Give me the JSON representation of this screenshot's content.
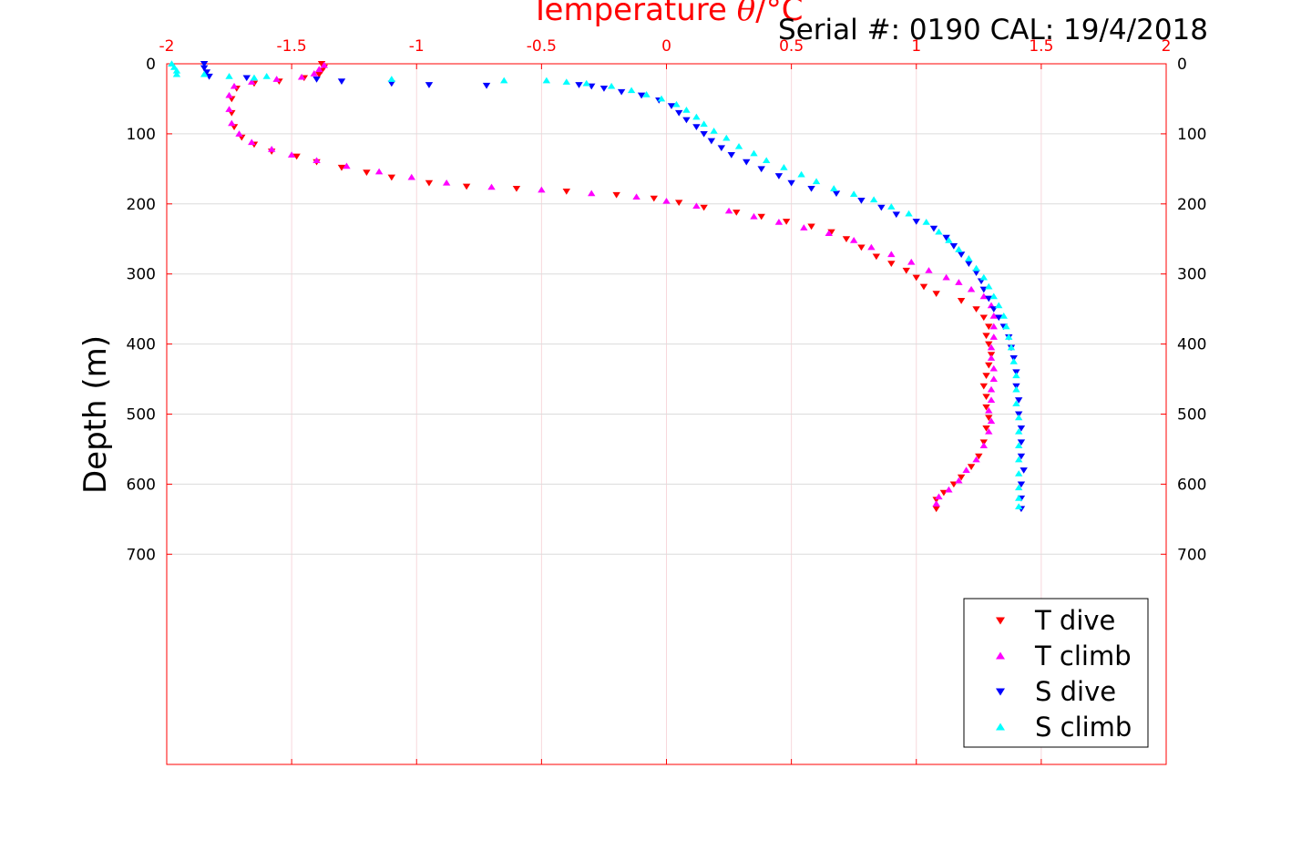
{
  "chart_data": {
    "type": "scatter",
    "xlabel_prefix": "Temperature ",
    "xlabel_symbol": "θ",
    "xlabel_suffix": "/°C",
    "ylabel": "Depth (m)",
    "annotation": "Serial #: 0190  CAL: 19/4/2018",
    "xlim": [
      -2,
      2
    ],
    "ylim": [
      0,
      1000
    ],
    "x_axis_position": "top",
    "y_axis_reversed": true,
    "x_ticks": [
      "-2",
      "-1.5",
      "-1",
      "-0.5",
      "0",
      "0.5",
      "1",
      "1.5",
      "2"
    ],
    "y_ticks": [
      "0",
      "100",
      "200",
      "300",
      "400",
      "500",
      "600",
      "700"
    ],
    "grid": true,
    "legend_position": "bottom-right",
    "colors": {
      "x_axis": "#ff0000",
      "box": "#ff0000"
    },
    "series": [
      {
        "name": "T dive",
        "marker": "triangle-down",
        "color": "#ff0000",
        "points": [
          [
            -1.38,
            0
          ],
          [
            -1.37,
            5
          ],
          [
            -1.38,
            10
          ],
          [
            -1.39,
            15
          ],
          [
            -1.45,
            20
          ],
          [
            -1.55,
            25
          ],
          [
            -1.65,
            28
          ],
          [
            -1.72,
            35
          ],
          [
            -1.74,
            50
          ],
          [
            -1.74,
            70
          ],
          [
            -1.73,
            90
          ],
          [
            -1.7,
            105
          ],
          [
            -1.65,
            115
          ],
          [
            -1.58,
            125
          ],
          [
            -1.48,
            132
          ],
          [
            -1.4,
            140
          ],
          [
            -1.3,
            148
          ],
          [
            -1.2,
            155
          ],
          [
            -1.1,
            162
          ],
          [
            -0.95,
            170
          ],
          [
            -0.8,
            175
          ],
          [
            -0.6,
            178
          ],
          [
            -0.4,
            182
          ],
          [
            -0.2,
            187
          ],
          [
            -0.05,
            192
          ],
          [
            0.05,
            198
          ],
          [
            0.15,
            205
          ],
          [
            0.28,
            212
          ],
          [
            0.38,
            218
          ],
          [
            0.48,
            225
          ],
          [
            0.58,
            232
          ],
          [
            0.66,
            240
          ],
          [
            0.72,
            250
          ],
          [
            0.78,
            262
          ],
          [
            0.84,
            275
          ],
          [
            0.9,
            285
          ],
          [
            0.96,
            295
          ],
          [
            1.0,
            305
          ],
          [
            1.03,
            318
          ],
          [
            1.08,
            328
          ],
          [
            1.18,
            338
          ],
          [
            1.24,
            350
          ],
          [
            1.27,
            362
          ],
          [
            1.29,
            375
          ],
          [
            1.28,
            388
          ],
          [
            1.29,
            400
          ],
          [
            1.3,
            415
          ],
          [
            1.29,
            430
          ],
          [
            1.28,
            445
          ],
          [
            1.27,
            460
          ],
          [
            1.28,
            475
          ],
          [
            1.28,
            490
          ],
          [
            1.29,
            505
          ],
          [
            1.28,
            520
          ],
          [
            1.27,
            540
          ],
          [
            1.25,
            560
          ],
          [
            1.22,
            575
          ],
          [
            1.18,
            590
          ],
          [
            1.15,
            600
          ],
          [
            1.11,
            612
          ],
          [
            1.08,
            622
          ],
          [
            1.08,
            635
          ]
        ]
      },
      {
        "name": "T climb",
        "marker": "triangle-up",
        "color": "#ff00ff",
        "points": [
          [
            -1.37,
            2
          ],
          [
            -1.39,
            8
          ],
          [
            -1.41,
            14
          ],
          [
            -1.46,
            19
          ],
          [
            -1.56,
            22
          ],
          [
            -1.66,
            26
          ],
          [
            -1.73,
            32
          ],
          [
            -1.75,
            45
          ],
          [
            -1.75,
            65
          ],
          [
            -1.74,
            85
          ],
          [
            -1.71,
            100
          ],
          [
            -1.66,
            112
          ],
          [
            -1.58,
            122
          ],
          [
            -1.5,
            130
          ],
          [
            -1.4,
            138
          ],
          [
            -1.28,
            146
          ],
          [
            -1.15,
            154
          ],
          [
            -1.02,
            162
          ],
          [
            -0.88,
            170
          ],
          [
            -0.7,
            176
          ],
          [
            -0.5,
            180
          ],
          [
            -0.3,
            185
          ],
          [
            -0.12,
            190
          ],
          [
            0.0,
            196
          ],
          [
            0.12,
            203
          ],
          [
            0.25,
            210
          ],
          [
            0.35,
            218
          ],
          [
            0.45,
            226
          ],
          [
            0.55,
            234
          ],
          [
            0.65,
            242
          ],
          [
            0.75,
            252
          ],
          [
            0.82,
            262
          ],
          [
            0.9,
            272
          ],
          [
            0.98,
            283
          ],
          [
            1.05,
            295
          ],
          [
            1.12,
            305
          ],
          [
            1.17,
            312
          ],
          [
            1.22,
            322
          ],
          [
            1.27,
            332
          ],
          [
            1.3,
            345
          ],
          [
            1.31,
            360
          ],
          [
            1.31,
            375
          ],
          [
            1.31,
            390
          ],
          [
            1.3,
            405
          ],
          [
            1.3,
            420
          ],
          [
            1.31,
            435
          ],
          [
            1.31,
            450
          ],
          [
            1.3,
            465
          ],
          [
            1.3,
            480
          ],
          [
            1.29,
            495
          ],
          [
            1.3,
            510
          ],
          [
            1.29,
            525
          ],
          [
            1.27,
            545
          ],
          [
            1.24,
            565
          ],
          [
            1.2,
            580
          ],
          [
            1.17,
            595
          ],
          [
            1.13,
            608
          ],
          [
            1.09,
            618
          ],
          [
            1.08,
            628
          ]
        ]
      },
      {
        "name": "S dive",
        "marker": "triangle-down",
        "color": "#0000ff",
        "points": [
          [
            -1.85,
            0
          ],
          [
            -1.85,
            6
          ],
          [
            -1.84,
            12
          ],
          [
            -1.83,
            18
          ],
          [
            -1.68,
            20
          ],
          [
            -1.4,
            22
          ],
          [
            -1.3,
            25
          ],
          [
            -1.1,
            28
          ],
          [
            -0.95,
            30
          ],
          [
            -0.72,
            31
          ],
          [
            -0.35,
            30
          ],
          [
            -0.3,
            32
          ],
          [
            -0.25,
            35
          ],
          [
            -0.18,
            40
          ],
          [
            -0.1,
            45
          ],
          [
            -0.03,
            52
          ],
          [
            0.02,
            60
          ],
          [
            0.05,
            70
          ],
          [
            0.08,
            80
          ],
          [
            0.12,
            90
          ],
          [
            0.15,
            100
          ],
          [
            0.18,
            110
          ],
          [
            0.22,
            120
          ],
          [
            0.26,
            130
          ],
          [
            0.32,
            140
          ],
          [
            0.38,
            150
          ],
          [
            0.45,
            160
          ],
          [
            0.5,
            170
          ],
          [
            0.58,
            178
          ],
          [
            0.68,
            185
          ],
          [
            0.78,
            195
          ],
          [
            0.86,
            205
          ],
          [
            0.92,
            215
          ],
          [
            1.0,
            225
          ],
          [
            1.07,
            235
          ],
          [
            1.12,
            248
          ],
          [
            1.15,
            260
          ],
          [
            1.18,
            272
          ],
          [
            1.21,
            285
          ],
          [
            1.24,
            298
          ],
          [
            1.26,
            310
          ],
          [
            1.27,
            322
          ],
          [
            1.29,
            335
          ],
          [
            1.31,
            350
          ],
          [
            1.33,
            362
          ],
          [
            1.35,
            375
          ],
          [
            1.37,
            390
          ],
          [
            1.38,
            405
          ],
          [
            1.39,
            420
          ],
          [
            1.4,
            440
          ],
          [
            1.4,
            460
          ],
          [
            1.41,
            480
          ],
          [
            1.41,
            500
          ],
          [
            1.42,
            520
          ],
          [
            1.42,
            540
          ],
          [
            1.42,
            560
          ],
          [
            1.43,
            580
          ],
          [
            1.42,
            600
          ],
          [
            1.42,
            620
          ],
          [
            1.42,
            635
          ]
        ]
      },
      {
        "name": "S climb",
        "marker": "triangle-up",
        "color": "#00ffff",
        "points": [
          [
            -1.98,
            0
          ],
          [
            -1.97,
            5
          ],
          [
            -1.96,
            10
          ],
          [
            -1.96,
            15
          ],
          [
            -1.85,
            15
          ],
          [
            -1.75,
            18
          ],
          [
            -1.65,
            20
          ],
          [
            -1.6,
            18
          ],
          [
            -1.1,
            22
          ],
          [
            -0.65,
            24
          ],
          [
            -0.48,
            24
          ],
          [
            -0.4,
            26
          ],
          [
            -0.32,
            28
          ],
          [
            -0.22,
            32
          ],
          [
            -0.14,
            38
          ],
          [
            -0.08,
            44
          ],
          [
            -0.02,
            50
          ],
          [
            0.04,
            58
          ],
          [
            0.08,
            66
          ],
          [
            0.12,
            76
          ],
          [
            0.15,
            86
          ],
          [
            0.19,
            96
          ],
          [
            0.24,
            106
          ],
          [
            0.29,
            118
          ],
          [
            0.35,
            128
          ],
          [
            0.4,
            138
          ],
          [
            0.47,
            148
          ],
          [
            0.54,
            158
          ],
          [
            0.6,
            168
          ],
          [
            0.67,
            178
          ],
          [
            0.75,
            186
          ],
          [
            0.83,
            194
          ],
          [
            0.9,
            204
          ],
          [
            0.97,
            214
          ],
          [
            1.04,
            226
          ],
          [
            1.09,
            240
          ],
          [
            1.13,
            252
          ],
          [
            1.17,
            265
          ],
          [
            1.21,
            278
          ],
          [
            1.24,
            292
          ],
          [
            1.27,
            305
          ],
          [
            1.29,
            318
          ],
          [
            1.31,
            332
          ],
          [
            1.33,
            345
          ],
          [
            1.35,
            360
          ],
          [
            1.36,
            375
          ],
          [
            1.37,
            390
          ],
          [
            1.38,
            405
          ],
          [
            1.39,
            425
          ],
          [
            1.4,
            445
          ],
          [
            1.4,
            465
          ],
          [
            1.4,
            485
          ],
          [
            1.41,
            505
          ],
          [
            1.41,
            525
          ],
          [
            1.41,
            545
          ],
          [
            1.41,
            565
          ],
          [
            1.41,
            585
          ],
          [
            1.41,
            605
          ],
          [
            1.41,
            620
          ],
          [
            1.41,
            632
          ]
        ]
      }
    ]
  }
}
